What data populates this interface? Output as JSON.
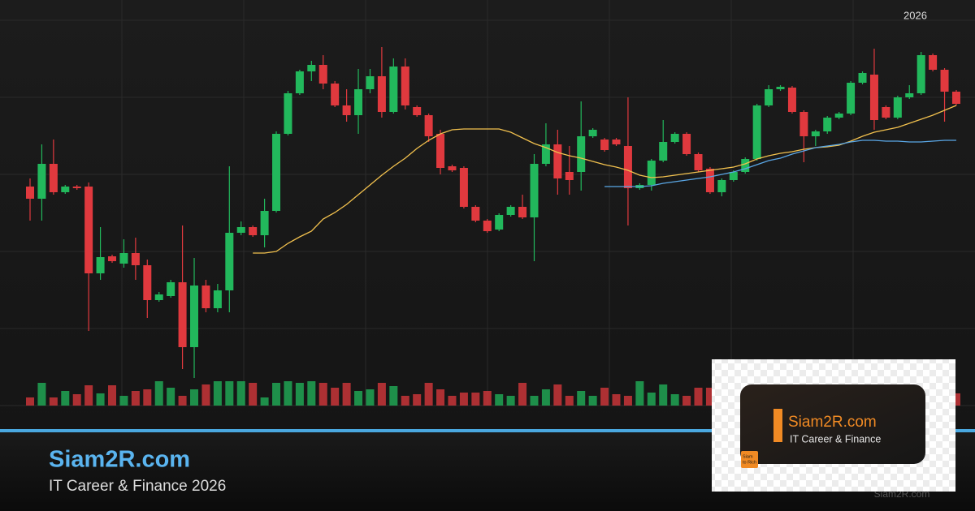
{
  "chart_data": {
    "type": "candlestick",
    "xticks": [
      {
        "value": 75.5,
        "label": "2026"
      }
    ],
    "ylim": [
      0,
      500
    ],
    "y2lim": [
      0,
      100
    ],
    "grid": true,
    "up_color": "#22b85c",
    "down_color": "#e0393e",
    "open": [
      270,
      255,
      298,
      263,
      270,
      270,
      163,
      184,
      175,
      188,
      173,
      130,
      135,
      152,
      72,
      148,
      120,
      142,
      213,
      220,
      210,
      240,
      335,
      385,
      412,
      420,
      397,
      370,
      358,
      390,
      406,
      362,
      418,
      368,
      358,
      335,
      295,
      293,
      245,
      228,
      217,
      235,
      245,
      232,
      298,
      322,
      288,
      288,
      332,
      328,
      328,
      320,
      268,
      272,
      302,
      325,
      335,
      310,
      292,
      263,
      278,
      288,
      304,
      370,
      390,
      392,
      362,
      332,
      338,
      355,
      360,
      398,
      408,
      368,
      355,
      380,
      385,
      432,
      414,
      387
    ],
    "high": [
      280,
      322,
      328,
      272,
      272,
      275,
      220,
      186,
      205,
      207,
      180,
      140,
      155,
      222,
      182,
      155,
      150,
      295,
      227,
      222,
      255,
      338,
      388,
      414,
      425,
      432,
      400,
      390,
      415,
      415,
      442,
      428,
      428,
      370,
      360,
      340,
      297,
      295,
      247,
      230,
      237,
      247,
      260,
      310,
      348,
      340,
      320,
      375,
      342,
      330,
      330,
      380,
      274,
      304,
      352,
      337,
      337,
      312,
      294,
      280,
      290,
      306,
      372,
      395,
      395,
      394,
      364,
      340,
      357,
      362,
      400,
      412,
      440,
      370,
      382,
      395,
      436,
      434,
      416,
      389
    ],
    "low": [
      228,
      228,
      260,
      261,
      266,
      92,
      155,
      176,
      170,
      155,
      108,
      128,
      133,
      45,
      34,
      115,
      115,
      115,
      210,
      208,
      195,
      238,
      333,
      383,
      400,
      390,
      368,
      350,
      335,
      385,
      355,
      360,
      365,
      356,
      325,
      285,
      288,
      243,
      226,
      213,
      215,
      233,
      230,
      178,
      295,
      260,
      260,
      265,
      330,
      313,
      320,
      222,
      266,
      265,
      300,
      323,
      308,
      288,
      261,
      258,
      276,
      286,
      302,
      368,
      388,
      360,
      300,
      320,
      335,
      353,
      358,
      396,
      340,
      353,
      353,
      378,
      383,
      412,
      350,
      370
    ],
    "close": [
      255,
      298,
      263,
      270,
      268,
      163,
      183,
      178,
      188,
      173,
      130,
      137,
      152,
      72,
      148,
      120,
      142,
      213,
      220,
      210,
      240,
      335,
      385,
      412,
      420,
      397,
      370,
      358,
      390,
      406,
      362,
      418,
      370,
      358,
      332,
      293,
      290,
      245,
      228,
      215,
      235,
      245,
      232,
      298,
      322,
      280,
      278,
      332,
      340,
      315,
      322,
      268,
      272,
      302,
      325,
      335,
      310,
      290,
      263,
      278,
      288,
      304,
      370,
      390,
      393,
      362,
      332,
      338,
      355,
      360,
      398,
      410,
      352,
      355,
      380,
      385,
      432,
      414,
      387,
      372
    ],
    "volume": [
      10,
      28,
      10,
      18,
      14,
      25,
      15,
      25,
      12,
      18,
      20,
      30,
      22,
      12,
      20,
      26,
      30,
      30,
      30,
      28,
      10,
      28,
      30,
      28,
      30,
      28,
      22,
      28,
      18,
      20,
      28,
      24,
      12,
      14,
      28,
      20,
      12,
      16,
      16,
      18,
      14,
      12,
      28,
      12,
      20,
      26,
      12,
      18,
      12,
      22,
      14,
      12,
      30,
      16,
      26,
      14,
      12,
      22,
      22,
      22,
      null,
      null,
      null,
      null,
      null,
      null,
      null,
      null,
      null,
      null,
      null,
      null,
      null,
      null,
      null,
      null,
      null,
      null,
      null,
      15
    ],
    "moving_averages": [
      {
        "color": "#f2c14e",
        "values": [
          null,
          null,
          null,
          null,
          null,
          null,
          null,
          null,
          null,
          null,
          null,
          null,
          null,
          null,
          null,
          null,
          null,
          null,
          null,
          188,
          188,
          190,
          200,
          208,
          215,
          230,
          238,
          248,
          260,
          272,
          284,
          295,
          305,
          317,
          327,
          335,
          340,
          341,
          341,
          341,
          341,
          337,
          330,
          323,
          318,
          312,
          308,
          305,
          301,
          297,
          294,
          290,
          284,
          281,
          282,
          284,
          286,
          288,
          290,
          292,
          294,
          298,
          304,
          308,
          311,
          313,
          316,
          318,
          319,
          321,
          326,
          332,
          337,
          340,
          343,
          348,
          353,
          358,
          364,
          370
        ]
      },
      {
        "color": "#5aa7e6",
        "values": [
          null,
          null,
          null,
          null,
          null,
          null,
          null,
          null,
          null,
          null,
          null,
          null,
          null,
          null,
          null,
          null,
          null,
          null,
          null,
          null,
          null,
          null,
          null,
          null,
          null,
          null,
          null,
          null,
          null,
          null,
          null,
          null,
          null,
          null,
          null,
          null,
          null,
          null,
          null,
          null,
          null,
          null,
          null,
          null,
          null,
          null,
          null,
          null,
          null,
          270,
          270,
          270,
          270,
          271,
          274,
          276,
          278,
          280,
          282,
          285,
          288,
          292,
          297,
          302,
          305,
          310,
          314,
          318,
          320,
          322,
          325,
          327,
          327,
          326,
          326,
          325,
          325,
          326,
          327,
          327
        ]
      }
    ]
  },
  "branding": {
    "site": "Siam2R.com",
    "tagline": "IT Career & Finance 2026",
    "card_site": "Siam2R.com",
    "card_tagline": "IT Career & Finance",
    "logo_line1": "Siam",
    "logo_line2": "to Rich",
    "footer": "Siam2R.com"
  }
}
